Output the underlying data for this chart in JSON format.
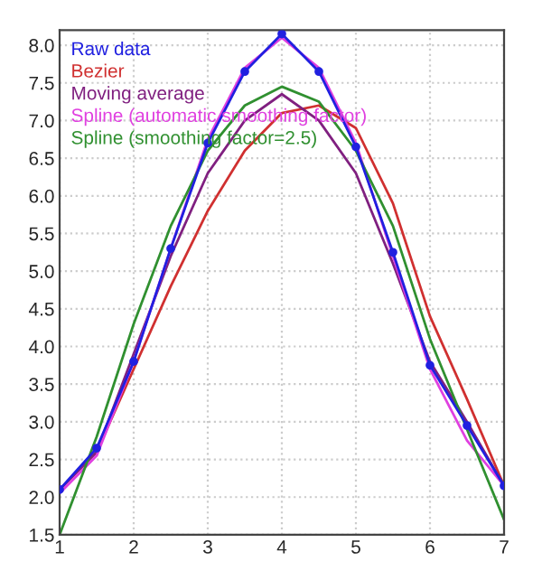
{
  "chart_data": {
    "type": "line",
    "x": [
      1,
      1.5,
      2,
      2.5,
      3,
      3.5,
      4,
      4.5,
      5,
      5.5,
      6,
      6.5,
      7
    ],
    "series": [
      {
        "name": "Raw data",
        "color": "#2020e0",
        "marker": "circle",
        "values": [
          2.1,
          2.65,
          3.8,
          5.3,
          6.7,
          7.65,
          8.15,
          7.65,
          6.65,
          5.25,
          3.75,
          2.95,
          2.15
        ]
      },
      {
        "name": "Bezier",
        "color": "#d03030",
        "values": [
          2.1,
          2.6,
          3.7,
          4.8,
          5.8,
          6.6,
          7.1,
          7.2,
          6.9,
          5.9,
          4.4,
          3.3,
          2.15
        ]
      },
      {
        "name": "Moving average",
        "color": "#802080",
        "values": [
          2.1,
          2.6,
          3.9,
          5.2,
          6.3,
          7.0,
          7.35,
          7.0,
          6.3,
          5.1,
          3.8,
          3.0,
          2.15
        ]
      },
      {
        "name": "Spline (automatic smoothing factor)",
        "color": "#e040e0",
        "values": [
          2.05,
          2.55,
          3.8,
          5.3,
          6.75,
          7.7,
          8.1,
          7.7,
          6.7,
          5.2,
          3.7,
          2.75,
          2.15
        ]
      },
      {
        "name": "Spline (smoothing factor=2.5)",
        "color": "#309030",
        "values": [
          1.5,
          2.8,
          4.3,
          5.6,
          6.6,
          7.2,
          7.45,
          7.25,
          6.6,
          5.6,
          4.1,
          2.9,
          1.7
        ]
      }
    ],
    "xlim": [
      1,
      7
    ],
    "xticks": [
      1,
      2,
      3,
      4,
      5,
      6,
      7
    ],
    "ylim": [
      1.5,
      8.2
    ],
    "yticks": [
      {
        "value": 1.5,
        "label": "1.5"
      },
      {
        "value": 2,
        "label": "2.0"
      },
      {
        "value": 2.5,
        "label": "2.5"
      },
      {
        "value": 3,
        "label": "3.0"
      },
      {
        "value": 3.5,
        "label": "3.5"
      },
      {
        "value": 4,
        "label": "4.0"
      },
      {
        "value": 4.5,
        "label": "4.5"
      },
      {
        "value": 5,
        "label": "5.0"
      },
      {
        "value": 5.5,
        "label": "5.5"
      },
      {
        "value": 6,
        "label": "6.0"
      },
      {
        "value": 6.5,
        "label": "6.5"
      },
      {
        "value": 7,
        "label": "7.0"
      },
      {
        "value": 7.5,
        "label": "7.5"
      },
      {
        "value": 8,
        "label": "8.0"
      }
    ],
    "grid": true,
    "legend": "top left",
    "line_style": "solid"
  }
}
